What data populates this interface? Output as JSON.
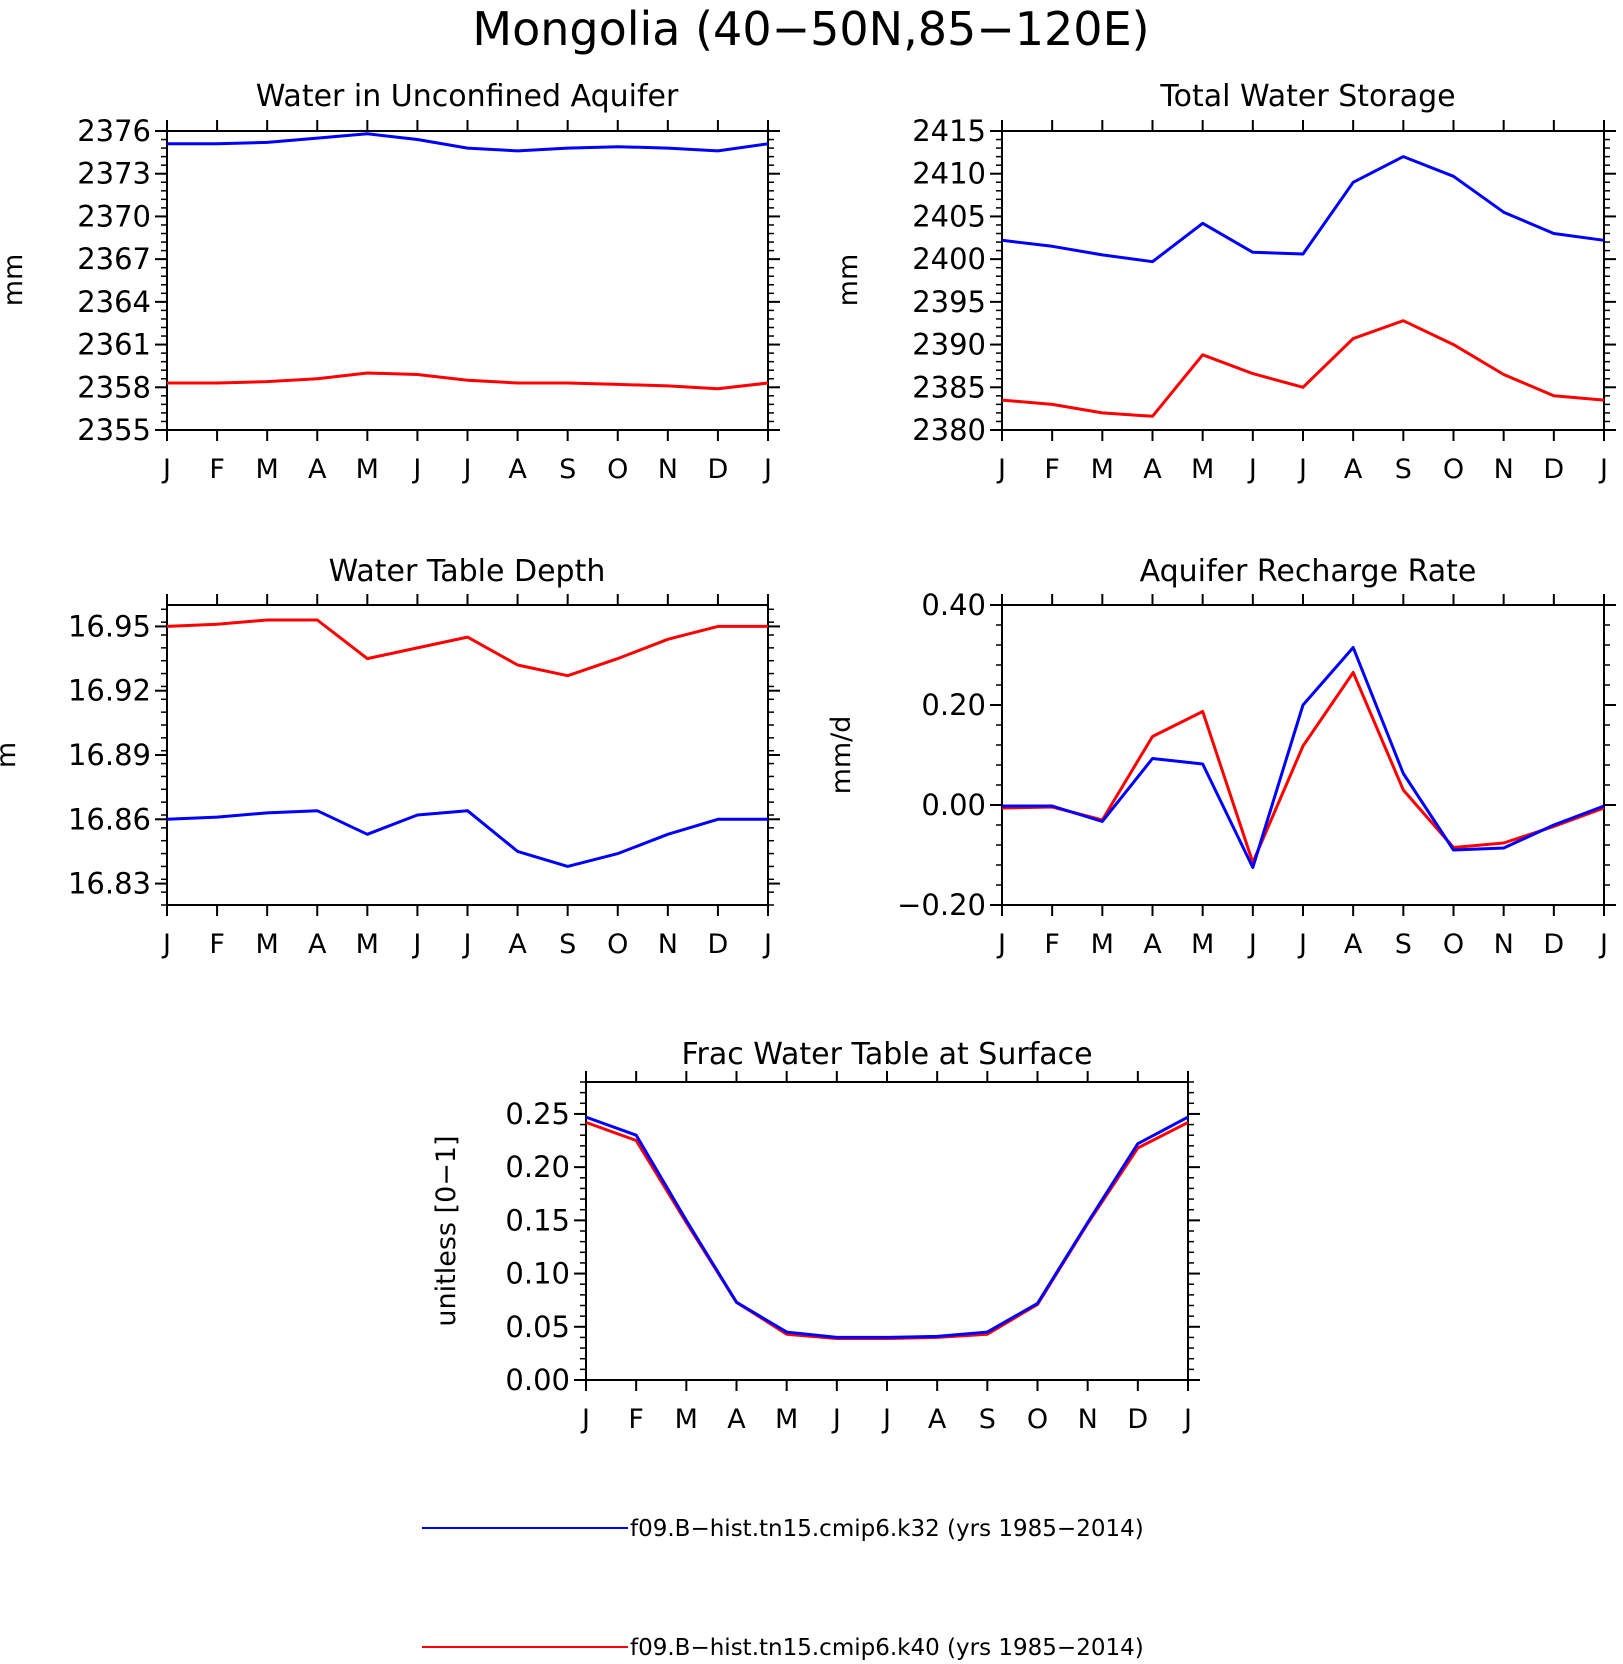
{
  "title": "Mongolia (40−50N,85−120E)",
  "months": [
    "J",
    "F",
    "M",
    "A",
    "M",
    "J",
    "J",
    "A",
    "S",
    "O",
    "N",
    "D",
    "J"
  ],
  "colors": {
    "k32": "#0000ff",
    "k40": "#ff0000",
    "axis": "#000000"
  },
  "legend": {
    "k32": "f09.B−hist.tn15.cmip6.k32 (yrs 1985−2014)",
    "k40": "f09.B−hist.tn15.cmip6.k40 (yrs 1985−2014)"
  },
  "chart_data": [
    {
      "type": "line",
      "title": "Water in Unconfined Aquifer",
      "ylabel": "mm",
      "ylim": [
        2355,
        2376
      ],
      "yticks": [
        2355,
        2358,
        2361,
        2364,
        2367,
        2370,
        2373,
        2376
      ],
      "ytick_labels": [
        "2355",
        "2358",
        "2361",
        "2364",
        "2367",
        "2370",
        "2373",
        "2376"
      ],
      "series": [
        {
          "key": "k32",
          "values": [
            2375.1,
            2375.1,
            2375.2,
            2375.5,
            2375.8,
            2375.4,
            2374.8,
            2374.6,
            2374.8,
            2374.9,
            2374.8,
            2374.6,
            2375.1
          ]
        },
        {
          "key": "k40",
          "values": [
            2358.3,
            2358.3,
            2358.4,
            2358.6,
            2359.0,
            2358.9,
            2358.5,
            2358.3,
            2358.3,
            2358.2,
            2358.1,
            2357.9,
            2358.3
          ]
        }
      ]
    },
    {
      "type": "line",
      "title": "Total Water Storage",
      "ylabel": "mm",
      "ylim": [
        2380,
        2415
      ],
      "yticks": [
        2380,
        2385,
        2390,
        2395,
        2400,
        2405,
        2410,
        2415
      ],
      "ytick_labels": [
        "2380",
        "2385",
        "2390",
        "2395",
        "2400",
        "2405",
        "2410",
        "2415"
      ],
      "series": [
        {
          "key": "k32",
          "values": [
            2402.2,
            2401.5,
            2400.5,
            2399.7,
            2404.2,
            2400.8,
            2400.6,
            2409.0,
            2412.0,
            2409.7,
            2405.5,
            2403.0,
            2402.2
          ]
        },
        {
          "key": "k40",
          "values": [
            2383.5,
            2383.0,
            2382.0,
            2381.6,
            2388.8,
            2386.6,
            2385.0,
            2390.7,
            2392.8,
            2390.0,
            2386.5,
            2384.0,
            2383.5
          ]
        }
      ]
    },
    {
      "type": "line",
      "title": "Water Table Depth",
      "ylabel": "m",
      "ylim": [
        16.82,
        16.96
      ],
      "yticks": [
        16.83,
        16.86,
        16.89,
        16.92,
        16.95
      ],
      "ytick_labels": [
        "16.83",
        "16.86",
        "16.89",
        "16.92",
        "16.95"
      ],
      "series": [
        {
          "key": "k32",
          "values": [
            16.86,
            16.861,
            16.863,
            16.864,
            16.853,
            16.862,
            16.864,
            16.845,
            16.838,
            16.844,
            16.853,
            16.86,
            16.86
          ]
        },
        {
          "key": "k40",
          "values": [
            16.95,
            16.951,
            16.953,
            16.953,
            16.935,
            16.94,
            16.945,
            16.932,
            16.927,
            16.935,
            16.944,
            16.95,
            16.95
          ]
        }
      ]
    },
    {
      "type": "line",
      "title": "Aquifer Recharge Rate",
      "ylabel": "mm/d",
      "ylim": [
        -0.2,
        0.4
      ],
      "yticks": [
        -0.2,
        0.0,
        0.2,
        0.4
      ],
      "ytick_labels": [
        "−0.20",
        "0.00",
        "0.20",
        "0.40"
      ],
      "series": [
        {
          "key": "k32",
          "values": [
            -0.002,
            -0.002,
            -0.033,
            0.093,
            0.082,
            -0.125,
            0.2,
            0.315,
            0.063,
            -0.09,
            -0.086,
            -0.04,
            -0.002
          ]
        },
        {
          "key": "k40",
          "values": [
            -0.006,
            -0.004,
            -0.03,
            0.137,
            0.187,
            -0.115,
            0.118,
            0.265,
            0.03,
            -0.085,
            -0.076,
            -0.043,
            -0.006
          ]
        }
      ]
    },
    {
      "type": "line",
      "title": "Frac Water Table at Surface",
      "ylabel": "unitless [0−1]",
      "ylim": [
        0,
        0.28
      ],
      "yticks": [
        0,
        0.05,
        0.1,
        0.15,
        0.2,
        0.25
      ],
      "ytick_labels": [
        "0.00",
        "0.05",
        "0.10",
        "0.15",
        "0.20",
        "0.25"
      ],
      "series": [
        {
          "key": "k32",
          "values": [
            0.247,
            0.23,
            0.15,
            0.073,
            0.045,
            0.04,
            0.04,
            0.041,
            0.045,
            0.072,
            0.148,
            0.222,
            0.247
          ]
        },
        {
          "key": "k40",
          "values": [
            0.242,
            0.225,
            0.148,
            0.073,
            0.043,
            0.039,
            0.039,
            0.04,
            0.043,
            0.071,
            0.147,
            0.218,
            0.242
          ]
        }
      ]
    }
  ]
}
